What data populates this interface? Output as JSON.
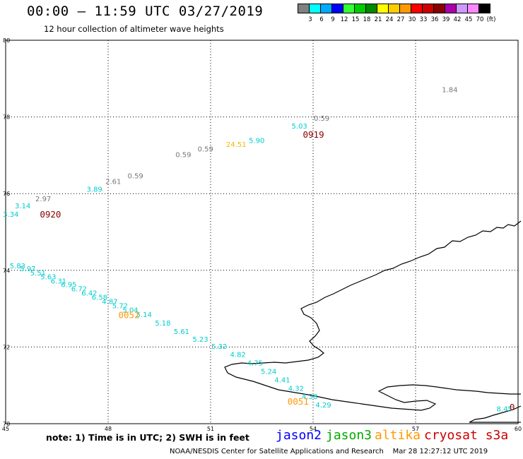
{
  "header": {
    "title": "00:00 — 11:59 UTC 03/27/2019",
    "subtitle": "12 hour collection of altimeter wave heights"
  },
  "colorbar": {
    "unit_label": "(ft)",
    "items": [
      {
        "label": "3",
        "color": "#808080"
      },
      {
        "label": "6",
        "color": "#00ffff"
      },
      {
        "label": "9",
        "color": "#00aaff"
      },
      {
        "label": "12",
        "color": "#0000ff"
      },
      {
        "label": "15",
        "color": "#33ff33"
      },
      {
        "label": "18",
        "color": "#00cc00"
      },
      {
        "label": "21",
        "color": "#008800"
      },
      {
        "label": "24",
        "color": "#ffff00"
      },
      {
        "label": "27",
        "color": "#ffcc00"
      },
      {
        "label": "30",
        "color": "#ff9900"
      },
      {
        "label": "33",
        "color": "#ff0000"
      },
      {
        "label": "36",
        "color": "#cc0000"
      },
      {
        "label": "39",
        "color": "#880000"
      },
      {
        "label": "42",
        "color": "#aa00aa"
      },
      {
        "label": "45",
        "color": "#cc99ff"
      },
      {
        "label": "70",
        "color": "#ff88ff"
      },
      {
        "label": "",
        "color": "#000000"
      }
    ]
  },
  "chart_data": {
    "type": "scatter",
    "xlim": [
      45,
      60
    ],
    "ylim": [
      70,
      80
    ],
    "x_ticks": [
      {
        "value": 45,
        "label": "45"
      },
      {
        "value": 48,
        "label": "48"
      },
      {
        "value": 51,
        "label": "51"
      },
      {
        "value": 54,
        "label": "54"
      },
      {
        "value": 57,
        "label": "57"
      },
      {
        "value": 60,
        "label": "60"
      }
    ],
    "y_ticks": [
      {
        "value": 70,
        "label": "70"
      },
      {
        "value": 72,
        "label": "72"
      },
      {
        "value": 74,
        "label": "74"
      },
      {
        "value": 76,
        "label": "76"
      },
      {
        "value": 78,
        "label": "78"
      },
      {
        "value": 80,
        "label": "80"
      }
    ],
    "grid": true,
    "grid_style": "dotted",
    "points": [
      {
        "lon": 58.0,
        "lat": 78.65,
        "label": "1.84",
        "color": "#777777"
      },
      {
        "lon": 53.6,
        "lat": 77.7,
        "label": "5.03",
        "color": "#00cccc"
      },
      {
        "lon": 54.25,
        "lat": 77.9,
        "label": "0.59",
        "color": "#777777"
      },
      {
        "lon": 52.35,
        "lat": 77.32,
        "label": "5.90",
        "color": "#00cccc"
      },
      {
        "lon": 51.75,
        "lat": 77.22,
        "label": "24.51",
        "color": "#f0b800"
      },
      {
        "lon": 50.85,
        "lat": 77.1,
        "label": "0.59",
        "color": "#777777"
      },
      {
        "lon": 50.2,
        "lat": 76.95,
        "label": "0.59",
        "color": "#777777"
      },
      {
        "lon": 48.8,
        "lat": 76.4,
        "label": "0.59",
        "color": "#777777"
      },
      {
        "lon": 48.15,
        "lat": 76.25,
        "label": "2.61",
        "color": "#777777"
      },
      {
        "lon": 47.6,
        "lat": 76.05,
        "label": "3.89",
        "color": "#00cccc"
      },
      {
        "lon": 46.1,
        "lat": 75.8,
        "label": "2.97",
        "color": "#777777"
      },
      {
        "lon": 45.5,
        "lat": 75.62,
        "label": "3.14",
        "color": "#00cccc"
      },
      {
        "lon": 45.15,
        "lat": 75.4,
        "label": "3.34",
        "color": "#00cccc"
      },
      {
        "lon": 45.35,
        "lat": 74.05,
        "label": "5.83",
        "color": "#00cccc"
      },
      {
        "lon": 45.65,
        "lat": 73.98,
        "label": "5.97",
        "color": "#00cccc"
      },
      {
        "lon": 45.95,
        "lat": 73.87,
        "label": "5.51",
        "color": "#00cccc"
      },
      {
        "lon": 46.25,
        "lat": 73.77,
        "label": "5.63",
        "color": "#00cccc"
      },
      {
        "lon": 46.55,
        "lat": 73.66,
        "label": "6.31",
        "color": "#00cccc"
      },
      {
        "lon": 46.85,
        "lat": 73.56,
        "label": "6.95",
        "color": "#00cccc"
      },
      {
        "lon": 47.15,
        "lat": 73.45,
        "label": "6.72",
        "color": "#00cccc"
      },
      {
        "lon": 47.45,
        "lat": 73.34,
        "label": "6.42",
        "color": "#00cccc"
      },
      {
        "lon": 47.75,
        "lat": 73.23,
        "label": "6.58",
        "color": "#00cccc"
      },
      {
        "lon": 48.05,
        "lat": 73.12,
        "label": "4.87",
        "color": "#00cccc"
      },
      {
        "lon": 48.35,
        "lat": 73.01,
        "label": "5.72",
        "color": "#00cccc"
      },
      {
        "lon": 48.65,
        "lat": 72.9,
        "label": "5.04",
        "color": "#00cccc"
      },
      {
        "lon": 49.05,
        "lat": 72.78,
        "label": "5.14",
        "color": "#00cccc"
      },
      {
        "lon": 49.6,
        "lat": 72.56,
        "label": "5.18",
        "color": "#00cccc"
      },
      {
        "lon": 50.15,
        "lat": 72.34,
        "label": "5.61",
        "color": "#00cccc"
      },
      {
        "lon": 50.7,
        "lat": 72.14,
        "label": "5.23",
        "color": "#00cccc"
      },
      {
        "lon": 51.25,
        "lat": 71.95,
        "label": "5.32",
        "color": "#00cccc"
      },
      {
        "lon": 51.8,
        "lat": 71.74,
        "label": "4.82",
        "color": "#00cccc"
      },
      {
        "lon": 52.3,
        "lat": 71.52,
        "label": "4.75",
        "color": "#00cccc"
      },
      {
        "lon": 52.7,
        "lat": 71.3,
        "label": "5.24",
        "color": "#00cccc"
      },
      {
        "lon": 53.1,
        "lat": 71.08,
        "label": "4.41",
        "color": "#00cccc"
      },
      {
        "lon": 53.5,
        "lat": 70.86,
        "label": "4.32",
        "color": "#00cccc"
      },
      {
        "lon": 53.9,
        "lat": 70.64,
        "label": "4.38",
        "color": "#00cccc"
      },
      {
        "lon": 54.3,
        "lat": 70.42,
        "label": "4.29",
        "color": "#00cccc"
      },
      {
        "lon": 59.6,
        "lat": 70.32,
        "label": "8.45",
        "color": "#00cccc"
      }
    ],
    "time_labels": [
      {
        "lon": 53.7,
        "lat": 77.46,
        "label": "0919",
        "color": "#880000"
      },
      {
        "lon": 46.0,
        "lat": 75.38,
        "label": "0920",
        "color": "#880000"
      },
      {
        "lon": 48.3,
        "lat": 72.75,
        "label": "0052",
        "color": "#ff9900"
      },
      {
        "lon": 53.25,
        "lat": 70.5,
        "label": "0051",
        "color": "#ff9900"
      },
      {
        "lon": 59.75,
        "lat": 70.35,
        "label": "0",
        "color": "#880000"
      }
    ]
  },
  "notes": "note:  1) Time is in UTC;  2) SWH is in feet",
  "legend": [
    {
      "label": "jason2",
      "color": "#0000ff"
    },
    {
      "label": "jason3",
      "color": "#00aa00"
    },
    {
      "label": "altika",
      "color": "#ff9900"
    },
    {
      "label": "cryosat s3a",
      "color": "#cc0000"
    }
  ],
  "footer": {
    "center": "NOAA/NESDIS Center for Satellite Applications and Research",
    "timestamp": "Mar 28 12:27:12 UTC 2019"
  }
}
